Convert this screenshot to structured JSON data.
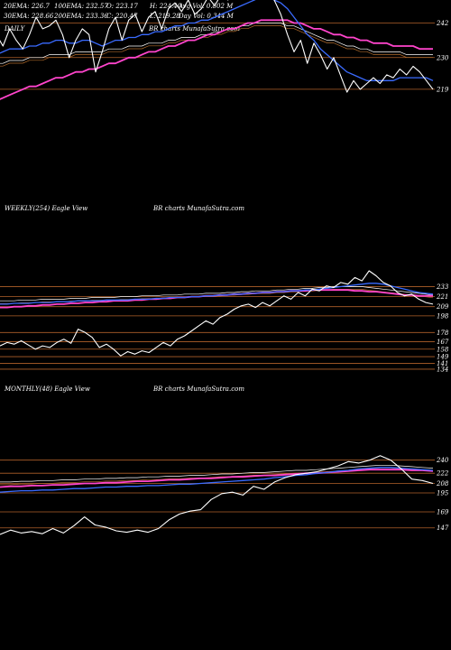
{
  "daily_header": {
    "row1": [
      "20EMA: 226.7",
      "100EMA: 232.57",
      "O: 223.17",
      "H: 224.40",
      "Avg Vol: 0.802  M"
    ],
    "row2": [
      "30EMA: 228.66",
      "200EMA: 233.36",
      "C: 220.47",
      "L: 219.28",
      "Day Vol: 0.344  M"
    ]
  },
  "panels": [
    {
      "label": "DAILY",
      "watermark": "BR charts MunafaSutra.com"
    },
    {
      "label": "WEEKLY(254) Eagle  View",
      "watermark": "BR charts MunafaSutra.com"
    },
    {
      "label": "MONTHLY(48) Eagle  View",
      "watermark": "BR charts MunafaSutra.com"
    }
  ],
  "colors": {
    "background": "#000000",
    "price": "#ffffff",
    "ema_fast": "#3a6bff",
    "ema_pink": "#ff44cc",
    "ema_slow": "#ffffff",
    "ema_brown": "#b06a2a",
    "level_line": "#b0602a"
  },
  "chart_data": [
    {
      "type": "line",
      "name": "daily",
      "ylim": [
        213,
        250
      ],
      "levels": [
        242,
        230,
        219
      ],
      "price": [
        238,
        234,
        240,
        236,
        233,
        238,
        244,
        240,
        241,
        243,
        238,
        230,
        236,
        240,
        238,
        225,
        232,
        240,
        244,
        236,
        243,
        245,
        239,
        244,
        246,
        240,
        247,
        249,
        246,
        250,
        245,
        247,
        251,
        248,
        252,
        250,
        254,
        251,
        253,
        255,
        260,
        256,
        250,
        245,
        238,
        232,
        236,
        228,
        235,
        231,
        226,
        230,
        224,
        218,
        222,
        219,
        221,
        223,
        221,
        224,
        223,
        226,
        224,
        227,
        225,
        222,
        219
      ],
      "ema_fast": [
        231,
        232,
        233,
        233,
        233,
        234,
        234,
        235,
        235,
        236,
        236,
        235,
        235,
        236,
        236,
        235,
        234,
        235,
        236,
        236,
        237,
        237,
        238,
        238,
        239,
        239,
        240,
        241,
        241,
        242,
        242,
        243,
        243,
        244,
        245,
        246,
        247,
        248,
        249,
        250,
        251,
        251,
        250,
        249,
        247,
        244,
        241,
        238,
        236,
        233,
        231,
        229,
        227,
        225,
        224,
        223,
        222,
        222,
        222,
        222,
        222,
        223,
        223,
        223,
        223,
        223,
        222
      ],
      "ema_pink": [
        215,
        216,
        217,
        218,
        219,
        220,
        220,
        221,
        222,
        223,
        223,
        224,
        225,
        225,
        226,
        226,
        227,
        228,
        228,
        229,
        230,
        230,
        231,
        232,
        232,
        233,
        234,
        234,
        235,
        236,
        236,
        237,
        238,
        238,
        239,
        240,
        240,
        241,
        242,
        242,
        243,
        243,
        243,
        243,
        243,
        242,
        242,
        241,
        240,
        240,
        239,
        238,
        238,
        237,
        237,
        236,
        236,
        235,
        235,
        235,
        234,
        234,
        234,
        234,
        233,
        233,
        233
      ],
      "ema_slow": [
        228,
        228,
        229,
        229,
        229,
        230,
        230,
        230,
        231,
        231,
        231,
        231,
        232,
        232,
        232,
        232,
        232,
        233,
        233,
        233,
        234,
        234,
        234,
        235,
        235,
        235,
        236,
        236,
        237,
        237,
        237,
        238,
        238,
        239,
        239,
        240,
        240,
        241,
        241,
        242,
        242,
        242,
        242,
        242,
        241,
        241,
        240,
        239,
        238,
        237,
        236,
        236,
        235,
        234,
        234,
        233,
        233,
        232,
        232,
        232,
        232,
        232,
        231,
        231,
        231,
        231,
        231
      ]
    },
    {
      "type": "line",
      "name": "weekly",
      "ylim": [
        148,
        252
      ],
      "levels": [
        233,
        221,
        209,
        198,
        178,
        167,
        158,
        149,
        141,
        134
      ],
      "price": [
        162,
        166,
        164,
        168,
        163,
        158,
        162,
        160,
        166,
        170,
        165,
        182,
        178,
        172,
        160,
        164,
        158,
        150,
        155,
        152,
        156,
        154,
        160,
        166,
        162,
        170,
        174,
        180,
        186,
        192,
        188,
        196,
        200,
        206,
        210,
        212,
        208,
        214,
        210,
        216,
        222,
        218,
        226,
        222,
        230,
        228,
        234,
        232,
        238,
        236,
        244,
        240,
        252,
        246,
        238,
        234,
        226,
        222,
        224,
        218,
        214,
        212
      ],
      "ema_fast": [
        212,
        212,
        213,
        213,
        213,
        214,
        214,
        214,
        215,
        215,
        215,
        216,
        216,
        216,
        216,
        217,
        217,
        217,
        217,
        218,
        218,
        218,
        219,
        219,
        220,
        220,
        220,
        221,
        221,
        222,
        222,
        223,
        223,
        224,
        224,
        225,
        225,
        226,
        226,
        227,
        227,
        228,
        228,
        229,
        229,
        230,
        231,
        232,
        233,
        234,
        235,
        236,
        237,
        237,
        236,
        234,
        232,
        230,
        228,
        226,
        225,
        224
      ],
      "ema_pink": [
        208,
        208,
        209,
        209,
        210,
        210,
        211,
        211,
        212,
        212,
        213,
        213,
        214,
        214,
        215,
        215,
        216,
        216,
        216,
        217,
        217,
        218,
        218,
        219,
        219,
        220,
        220,
        221,
        221,
        222,
        222,
        223,
        223,
        224,
        224,
        225,
        225,
        226,
        226,
        227,
        227,
        228,
        228,
        228,
        229,
        229,
        229,
        229,
        229,
        229,
        228,
        228,
        227,
        227,
        226,
        225,
        224,
        223,
        223,
        222,
        222,
        222
      ],
      "ema_slow": [
        216,
        216,
        216,
        217,
        217,
        217,
        218,
        218,
        218,
        218,
        219,
        219,
        219,
        220,
        220,
        220,
        220,
        221,
        221,
        221,
        222,
        222,
        222,
        223,
        223,
        223,
        224,
        224,
        224,
        225,
        225,
        225,
        226,
        226,
        227,
        227,
        228,
        228,
        228,
        229,
        229,
        230,
        230,
        231,
        231,
        232,
        232,
        233,
        233,
        233,
        233,
        233,
        232,
        231,
        230,
        229,
        228,
        227,
        226,
        225,
        224,
        223
      ]
    },
    {
      "type": "line",
      "name": "monthly",
      "ylim": [
        138,
        252
      ],
      "levels": [
        240,
        222,
        208,
        195,
        169,
        147
      ],
      "price": [
        138,
        144,
        140,
        142,
        139,
        146,
        140,
        150,
        162,
        151,
        148,
        143,
        141,
        144,
        141,
        146,
        158,
        166,
        170,
        172,
        186,
        194,
        196,
        192,
        204,
        200,
        210,
        216,
        220,
        222,
        224,
        228,
        232,
        238,
        236,
        240,
        246,
        240,
        228,
        214,
        212,
        208
      ],
      "ema_fast": [
        196,
        197,
        198,
        198,
        199,
        199,
        200,
        201,
        201,
        202,
        203,
        203,
        204,
        204,
        205,
        205,
        206,
        207,
        207,
        208,
        209,
        210,
        211,
        212,
        213,
        214,
        216,
        217,
        219,
        220,
        222,
        223,
        225,
        226,
        228,
        229,
        230,
        230,
        229,
        228,
        227,
        226
      ],
      "ema_pink": [
        203,
        204,
        204,
        205,
        205,
        206,
        206,
        207,
        208,
        208,
        209,
        209,
        210,
        211,
        211,
        212,
        213,
        213,
        214,
        215,
        215,
        216,
        217,
        217,
        218,
        219,
        219,
        220,
        221,
        222,
        222,
        223,
        224,
        225,
        226,
        227,
        227,
        227,
        227,
        226,
        226,
        225
      ],
      "ema_slow": [
        210,
        210,
        211,
        211,
        212,
        212,
        213,
        213,
        214,
        214,
        215,
        215,
        216,
        216,
        217,
        217,
        218,
        218,
        219,
        219,
        220,
        221,
        221,
        222,
        223,
        223,
        224,
        225,
        226,
        226,
        227,
        228,
        229,
        230,
        231,
        232,
        233,
        233,
        232,
        231,
        230,
        229
      ]
    }
  ]
}
